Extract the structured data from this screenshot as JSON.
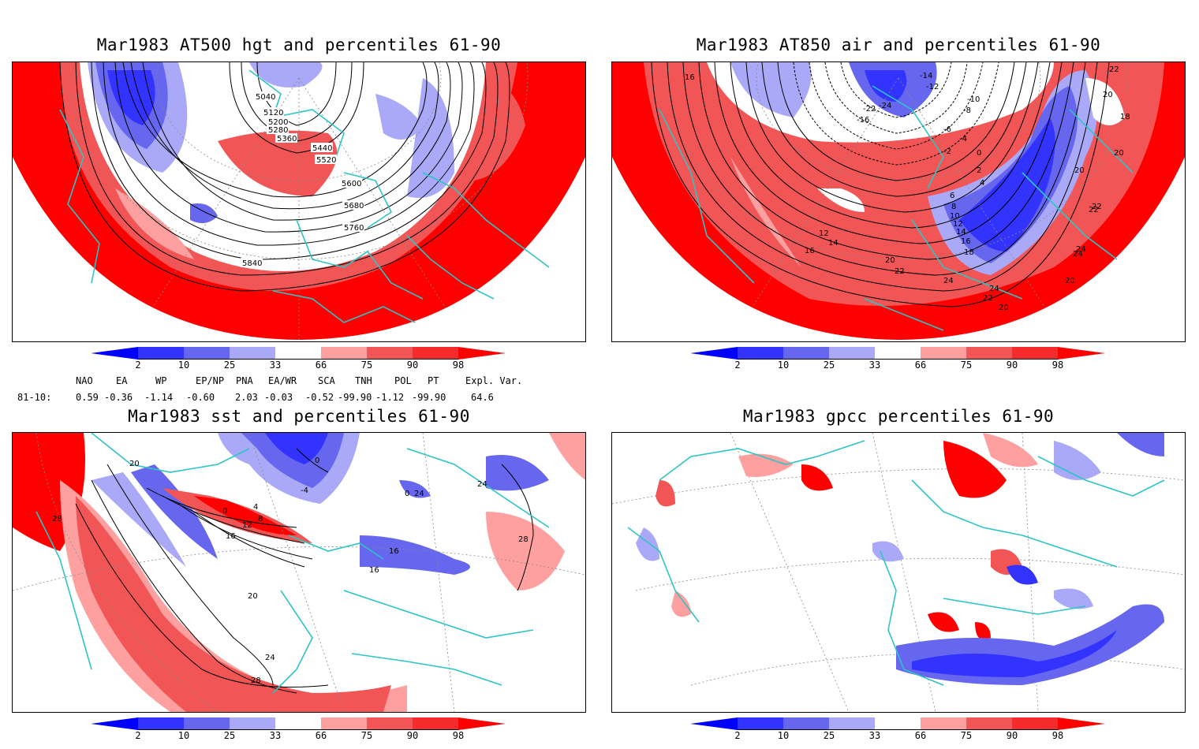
{
  "panels": [
    {
      "title": "Mar1983 AT500 hgt and percentiles 61-90",
      "contour_labels": [
        "5040",
        "5120",
        "5200",
        "5280",
        "5360",
        "5440",
        "5520",
        "5600",
        "5680",
        "5760",
        "5840"
      ]
    },
    {
      "title": "Mar1983 AT850 air and percentiles 61-90",
      "contour_labels": [
        "16",
        "-14",
        "-12",
        "-10",
        "-8",
        "-6",
        "-4",
        "-2",
        "0",
        "2",
        "4",
        "6",
        "8",
        "10",
        "12",
        "14",
        "16",
        "18",
        "20",
        "22",
        "24",
        "22",
        "20",
        "18",
        "-16",
        "-22",
        "-24",
        "12",
        "14",
        "16",
        "20",
        "22",
        "24",
        "24",
        "22",
        "20",
        "20",
        "24",
        "22",
        "20"
      ]
    },
    {
      "title": "Mar1983 sst and percentiles 61-90",
      "contour_labels": [
        "20",
        "0",
        "4",
        "8",
        "12",
        "16",
        "0",
        "-4",
        "24",
        "28",
        "20",
        "24",
        "28",
        "16",
        "16",
        "0",
        "28",
        "24"
      ]
    },
    {
      "title": "Mar1983 gpcc percentiles 61-90",
      "contour_labels": []
    }
  ],
  "colorbar": {
    "ticks": [
      "2",
      "10",
      "25",
      "33",
      "66",
      "75",
      "90",
      "98"
    ],
    "colors": {
      "below_2": "#0000ff",
      "b2_10": "#3333ff",
      "b10_25": "#6666ee",
      "b25_33": "#a9a9f8",
      "a66_75": "#ffa0a0",
      "a75_90": "#f25555",
      "a90_98": "#f52a2a",
      "above_98": "#ff0000"
    }
  },
  "indices": {
    "headers": [
      "NAO",
      "EA",
      "WP",
      "EP/NP",
      "PNA",
      "EA/WR",
      "SCA",
      "TNH",
      "POL",
      "PT",
      "Expl. Var."
    ],
    "row_label": "81-10:",
    "values": [
      "0.59",
      "-0.36",
      "-1.14",
      "-0.60",
      "2.03",
      "-0.03",
      "-0.52",
      "-99.90",
      "-1.12",
      "-99.90",
      "64.6"
    ]
  },
  "map_colors": {
    "coast": "#2ec4c4",
    "contour": "#000000",
    "grid": "#888888"
  }
}
